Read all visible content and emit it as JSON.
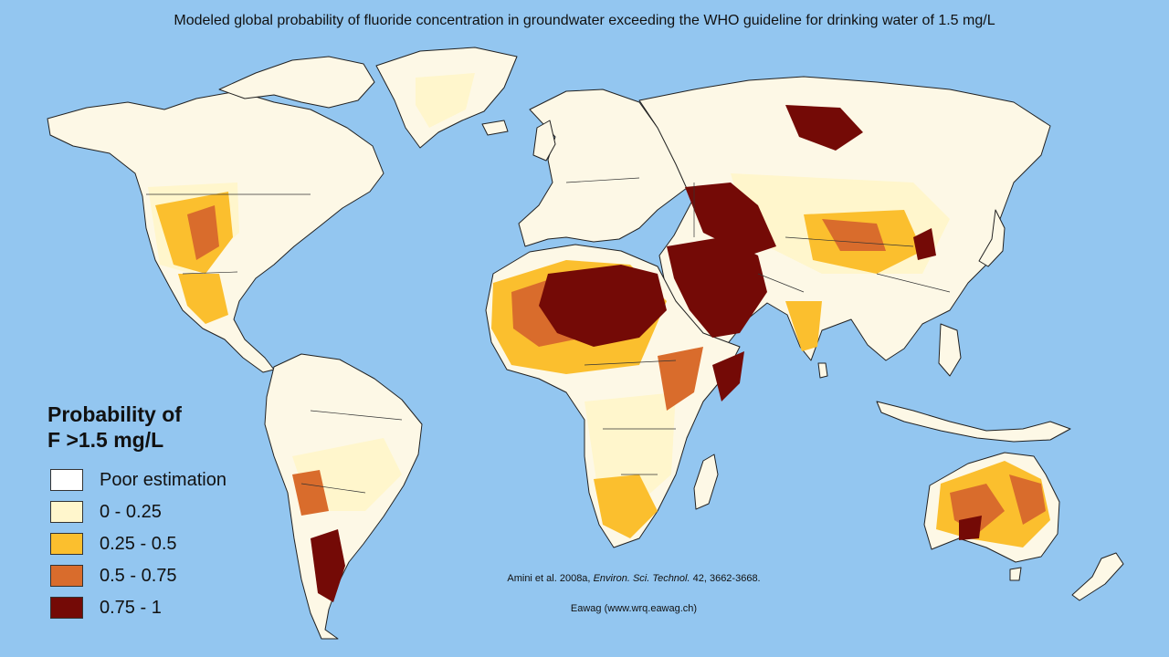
{
  "title": "Modeled global probability of fluoride concentration in groundwater exceeding the WHO guideline for drinking water of 1.5 mg/L",
  "legend": {
    "title_line1": "Probability of",
    "title_line2": "F >1.5 mg/L",
    "items": [
      {
        "label": "Poor estimation",
        "color": "#ffffff"
      },
      {
        "label": "0 - 0.25",
        "color": "#fff6cc"
      },
      {
        "label": "0.25 - 0.5",
        "color": "#fbbf2e"
      },
      {
        "label": "0.5 - 0.75",
        "color": "#d96c2c"
      },
      {
        "label": "0.75 - 1",
        "color": "#740a06"
      }
    ]
  },
  "citation": {
    "authors": "Amini et al. 2008a,",
    "journal": "Environ. Sci. Technol.",
    "details": "42, 3662-3668."
  },
  "credit": "Eawag (www.wrq.eawag.ch)",
  "colors": {
    "ocean": "#93c6f0",
    "land_outline": "#222222"
  }
}
